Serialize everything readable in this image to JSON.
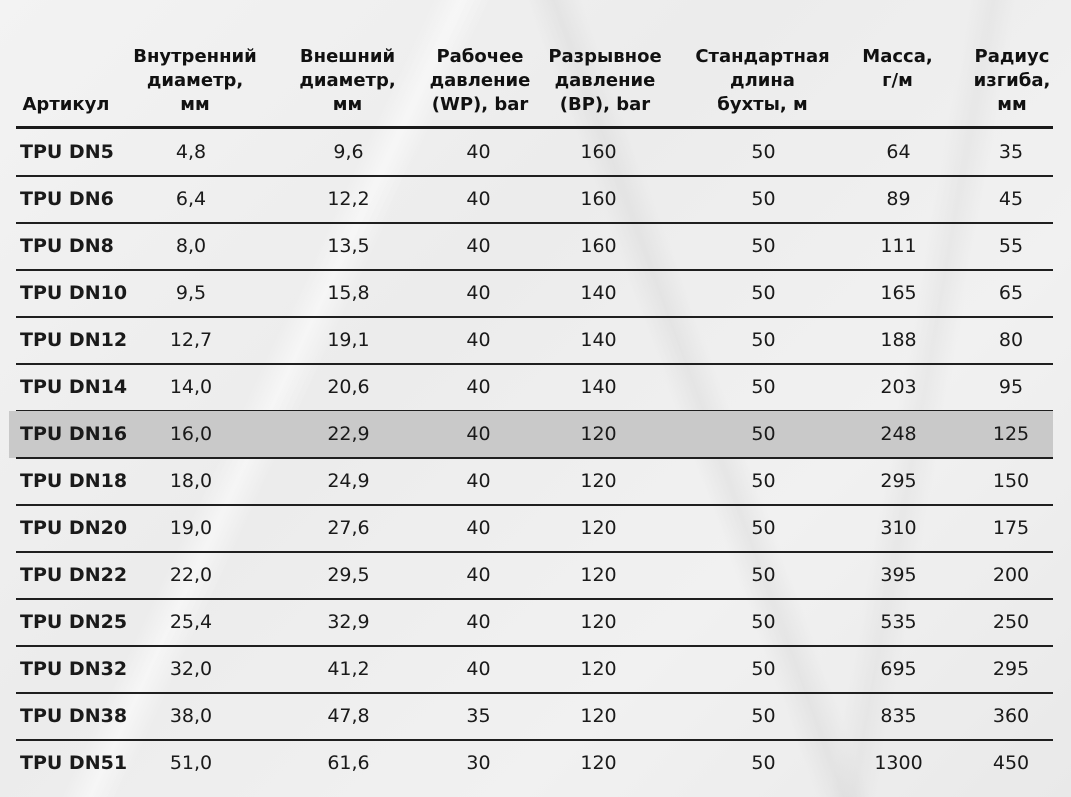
{
  "table": {
    "columns": [
      {
        "label": "Артикул"
      },
      {
        "label": "Внутренний\nдиаметр,\nмм"
      },
      {
        "label": "Внешний\nдиаметр,\nмм"
      },
      {
        "label": "Рабочее\nдавление\n(WP), bar"
      },
      {
        "label": "Разрывное\nдавление\n(BP), bar"
      },
      {
        "label": "Стандартная\nдлина\nбухты, м"
      },
      {
        "label": "Масса,\nг/м"
      },
      {
        "label": "Радиус\nизгиба,\nмм"
      }
    ],
    "highlight_row_index": 6,
    "highlight_color": "#c9c9c9",
    "rows": [
      {
        "sku": "TPU DN5",
        "inner": "4,8",
        "outer": "9,6",
        "wp": "40",
        "bp": "160",
        "length": "50",
        "mass": "64",
        "radius": "35"
      },
      {
        "sku": "TPU DN6",
        "inner": "6,4",
        "outer": "12,2",
        "wp": "40",
        "bp": "160",
        "length": "50",
        "mass": "89",
        "radius": "45"
      },
      {
        "sku": "TPU DN8",
        "inner": "8,0",
        "outer": "13,5",
        "wp": "40",
        "bp": "160",
        "length": "50",
        "mass": "111",
        "radius": "55"
      },
      {
        "sku": "TPU DN10",
        "inner": "9,5",
        "outer": "15,8",
        "wp": "40",
        "bp": "140",
        "length": "50",
        "mass": "165",
        "radius": "65"
      },
      {
        "sku": "TPU DN12",
        "inner": "12,7",
        "outer": "19,1",
        "wp": "40",
        "bp": "140",
        "length": "50",
        "mass": "188",
        "radius": "80"
      },
      {
        "sku": "TPU DN14",
        "inner": "14,0",
        "outer": "20,6",
        "wp": "40",
        "bp": "140",
        "length": "50",
        "mass": "203",
        "radius": "95"
      },
      {
        "sku": "TPU DN16",
        "inner": "16,0",
        "outer": "22,9",
        "wp": "40",
        "bp": "120",
        "length": "50",
        "mass": "248",
        "radius": "125"
      },
      {
        "sku": "TPU DN18",
        "inner": "18,0",
        "outer": "24,9",
        "wp": "40",
        "bp": "120",
        "length": "50",
        "mass": "295",
        "radius": "150"
      },
      {
        "sku": "TPU DN20",
        "inner": "19,0",
        "outer": "27,6",
        "wp": "40",
        "bp": "120",
        "length": "50",
        "mass": "310",
        "radius": "175"
      },
      {
        "sku": "TPU DN22",
        "inner": "22,0",
        "outer": "29,5",
        "wp": "40",
        "bp": "120",
        "length": "50",
        "mass": "395",
        "radius": "200"
      },
      {
        "sku": "TPU DN25",
        "inner": "25,4",
        "outer": "32,9",
        "wp": "40",
        "bp": "120",
        "length": "50",
        "mass": "535",
        "radius": "250"
      },
      {
        "sku": "TPU DN32",
        "inner": "32,0",
        "outer": "41,2",
        "wp": "40",
        "bp": "120",
        "length": "50",
        "mass": "695",
        "radius": "295"
      },
      {
        "sku": "TPU DN38",
        "inner": "38,0",
        "outer": "47,8",
        "wp": "35",
        "bp": "120",
        "length": "50",
        "mass": "835",
        "radius": "360"
      },
      {
        "sku": "TPU DN51",
        "inner": "51,0",
        "outer": "61,6",
        "wp": "30",
        "bp": "120",
        "length": "50",
        "mass": "1300",
        "radius": "450"
      }
    ]
  }
}
